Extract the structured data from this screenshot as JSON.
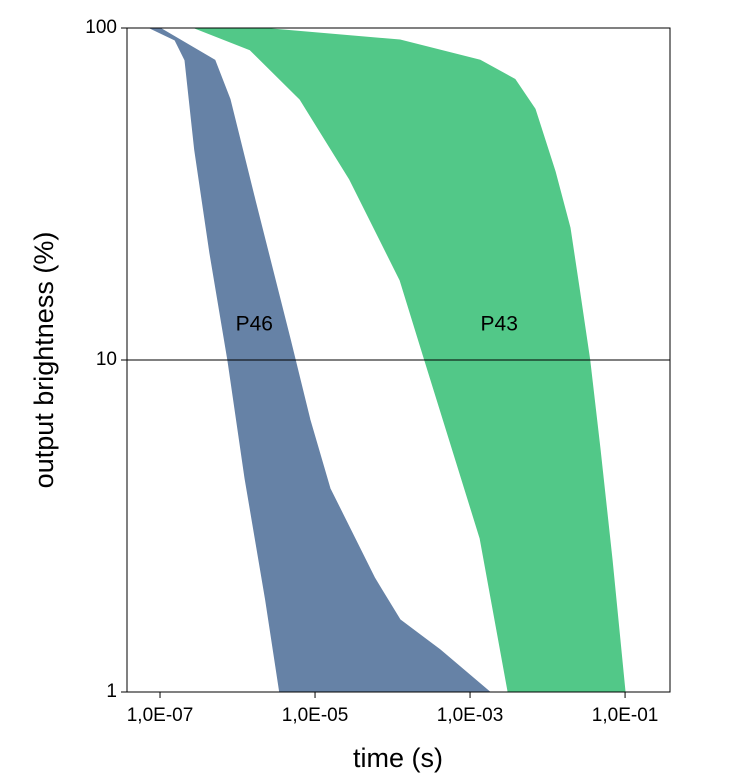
{
  "chart_data": {
    "type": "band",
    "x_label": "time (s)",
    "y_label": "output brightness (%)",
    "xscale": "log",
    "yscale": "log",
    "xlim": [
      3.75e-08,
      0.38
    ],
    "ylim": [
      1,
      100
    ],
    "xticks": [
      {
        "value": 1e-07,
        "label": "1,0E-07"
      },
      {
        "value": 1e-05,
        "label": "1,0E-05"
      },
      {
        "value": 0.001,
        "label": "1,0E-03"
      },
      {
        "value": 0.1,
        "label": "1,0E-01"
      }
    ],
    "yticks": [
      1,
      10,
      100
    ],
    "grid": "y",
    "series": [
      {
        "name": "P46",
        "color": "#6682a6",
        "left": {
          "x": [
            7.4e-08,
            1.56e-07,
            2.1e-07,
            2.8e-07,
            4.4e-07,
            7.5e-07,
            1.25e-06,
            2.3e-06,
            3.5e-06
          ],
          "y": [
            100,
            92,
            80,
            43,
            21,
            10,
            4.4,
            1.9,
            1
          ]
        },
        "right": {
          "x": [
            1e-07,
            5.1e-07,
            8e-07,
            1.7e-06,
            4.8e-06,
            8.6e-06,
            1.56e-05,
            5.9e-05,
            0.000125,
            0.00041,
            0.0018
          ],
          "y": [
            100,
            80,
            61,
            30,
            11.5,
            6.6,
            4.1,
            2.2,
            1.65,
            1.34,
            1
          ]
        }
      },
      {
        "name": "P43",
        "color": "#52c888",
        "left": {
          "x": [
            2.8e-07,
            1.45e-06,
            6.4e-06,
            2.8e-05,
            0.000125,
            0.00026,
            0.00055,
            0.00135,
            0.0031
          ],
          "y": [
            100,
            86,
            61,
            35,
            17.4,
            10,
            5.7,
            2.9,
            1
          ]
        },
        "right": {
          "x": [
            1.95e-06,
            0.000125,
            0.00135,
            0.0038,
            0.0069,
            0.0125,
            0.0195,
            0.026,
            0.035,
            0.0475,
            0.068,
            0.1
          ],
          "y": [
            100,
            92,
            80,
            70,
            57,
            37,
            25,
            16,
            10,
            5.4,
            2.5,
            1
          ]
        }
      }
    ]
  }
}
